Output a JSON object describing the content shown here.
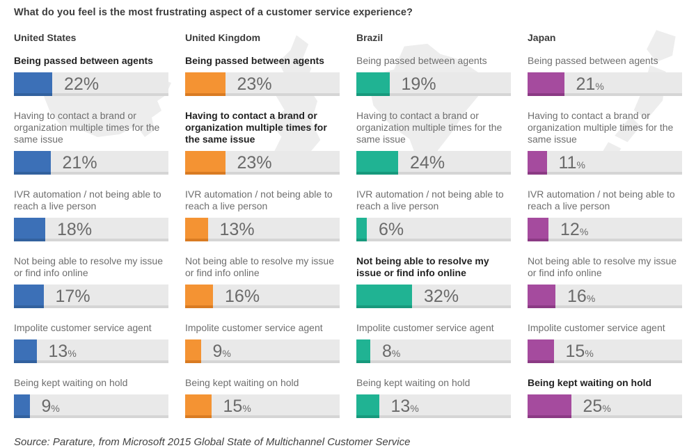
{
  "title": "What do you feel is the most frustrating aspect of a customer service experience?",
  "source": "Source: Parature, from Microsoft 2015 Global State of Multichannel Customer Service",
  "colors": {
    "track": "#e9e9e9",
    "track_edge": "#d5d5d5",
    "label_gray": "#6e6e6e",
    "label_bold": "#222222",
    "value_text": "#6a6a6a",
    "map_silhouette": "#ededed"
  },
  "icons": [
    "us-map-icon",
    "uk-map-icon",
    "brazil-map-icon",
    "japan-map-icon"
  ],
  "chart_data": {
    "type": "bar",
    "orientation": "horizontal",
    "unit": "%",
    "title": "What do you feel is the most frustrating aspect of a customer service experience?",
    "legend_position": "none",
    "grid": false,
    "xlim": [
      0,
      40
    ],
    "note": "highest value per country shown with bold label; faint country map silhouettes behind each column",
    "categories": [
      "Being passed between agents",
      "Having to contact a brand or organization multiple times for the same issue",
      "IVR automation / not being able to reach a live person",
      "Not being able to resolve my issue or find info online",
      "Impolite customer service agent",
      "Being kept waiting on hold"
    ],
    "series": [
      {
        "name": "United States",
        "color": "#3c70b7",
        "color_edge": "#32619e",
        "values": [
          22,
          21,
          18,
          17,
          13,
          9
        ],
        "small_pct": [
          false,
          false,
          false,
          false,
          true,
          true
        ]
      },
      {
        "name": "United Kingdom",
        "color": "#f49333",
        "color_edge": "#d97b22",
        "values": [
          23,
          23,
          13,
          16,
          9,
          15
        ],
        "small_pct": [
          false,
          false,
          false,
          false,
          true,
          true
        ]
      },
      {
        "name": "Brazil",
        "color": "#20b393",
        "color_edge": "#17997c",
        "values": [
          19,
          24,
          6,
          32,
          8,
          13
        ],
        "small_pct": [
          false,
          false,
          false,
          false,
          true,
          true
        ]
      },
      {
        "name": "Japan",
        "color": "#a54b9e",
        "color_edge": "#8b3a84",
        "values": [
          21,
          11,
          12,
          16,
          15,
          25
        ],
        "small_pct": [
          true,
          true,
          true,
          true,
          true,
          true
        ]
      }
    ]
  }
}
